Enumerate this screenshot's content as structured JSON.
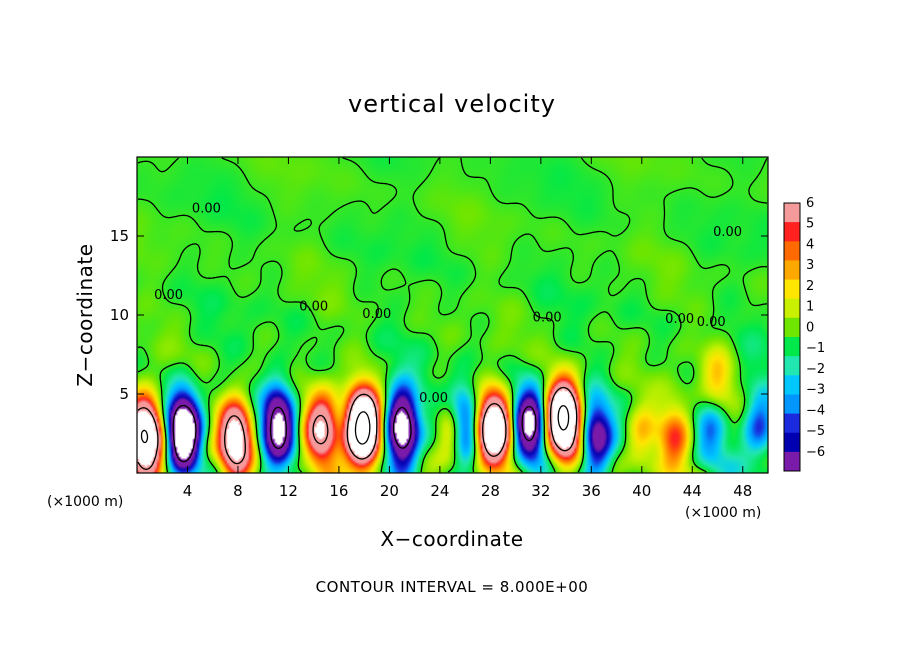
{
  "chart_data": {
    "type": "heatmap",
    "title": "vertical velocity",
    "xlabel": "X−coordinate",
    "ylabel": "Z−coordinate",
    "x_unit_left": "(×1000 m)",
    "x_unit_right": "(×1000 m)",
    "note": "CONTOUR INTERVAL = 8.000E+00",
    "xlim": [
      0,
      50
    ],
    "ylim": [
      0,
      20
    ],
    "x_ticks": [
      4,
      8,
      12,
      16,
      20,
      24,
      28,
      32,
      36,
      40,
      44,
      48
    ],
    "y_ticks": [
      5,
      10,
      15
    ],
    "grid": false,
    "colorbar": {
      "min": -6,
      "max": 6,
      "ticks": [
        "6",
        "5",
        "4",
        "3",
        "2",
        "1",
        "0",
        "−1",
        "−2",
        "−3",
        "−4",
        "−5",
        "−6"
      ],
      "colors": [
        "#f59a9a",
        "#ff2020",
        "#ff6a00",
        "#ffa800",
        "#ffe600",
        "#c8f000",
        "#6ee600",
        "#00e84a",
        "#22e6b0",
        "#00c8ff",
        "#0096ff",
        "#1a2adc",
        "#0000b0",
        "#7a1aa8"
      ]
    },
    "contour_labels": [
      {
        "text": "0.00",
        "x": 5.5,
        "z": 16.5
      },
      {
        "text": "0.00",
        "x": 2.5,
        "z": 11.0
      },
      {
        "text": "0.00",
        "x": 14.0,
        "z": 10.3
      },
      {
        "text": "0.00",
        "x": 19.0,
        "z": 9.8
      },
      {
        "text": "0.00",
        "x": 32.5,
        "z": 9.6
      },
      {
        "text": "0.00",
        "x": 43.0,
        "z": 9.5
      },
      {
        "text": "0.00",
        "x": 45.5,
        "z": 9.3
      },
      {
        "text": "0.00",
        "x": 46.8,
        "z": 15.0
      },
      {
        "text": "0.00",
        "x": 23.5,
        "z": 4.5
      }
    ],
    "updrafts": [
      {
        "x": 0.6,
        "z": 2.3,
        "amp": 16
      },
      {
        "x": 7.8,
        "z": 2.2,
        "amp": 12
      },
      {
        "x": 14.6,
        "z": 2.7,
        "amp": 9
      },
      {
        "x": 17.9,
        "z": 2.8,
        "amp": 20
      },
      {
        "x": 25.3,
        "z": 2.4,
        "amp": 7
      },
      {
        "x": 28.3,
        "z": 2.8,
        "amp": 14
      },
      {
        "x": 33.8,
        "z": 3.4,
        "amp": 18
      },
      {
        "x": 40.0,
        "z": 2.0,
        "amp": 3
      },
      {
        "x": 42.6,
        "z": 2.3,
        "amp": 4
      },
      {
        "x": 46.0,
        "z": 6.0,
        "amp": 2.5
      }
    ],
    "downdrafts": [
      {
        "x": 3.7,
        "z": 2.6,
        "amp": 14
      },
      {
        "x": 11.2,
        "z": 3.1,
        "amp": 10
      },
      {
        "x": 21.0,
        "z": 2.8,
        "amp": 12
      },
      {
        "x": 25.8,
        "z": 2.9,
        "amp": 9
      },
      {
        "x": 31.1,
        "z": 3.0,
        "amp": 10
      },
      {
        "x": 36.4,
        "z": 2.2,
        "amp": 7
      },
      {
        "x": 45.5,
        "z": 2.4,
        "amp": 3
      },
      {
        "x": 49.3,
        "z": 3.0,
        "amp": 4
      }
    ]
  }
}
